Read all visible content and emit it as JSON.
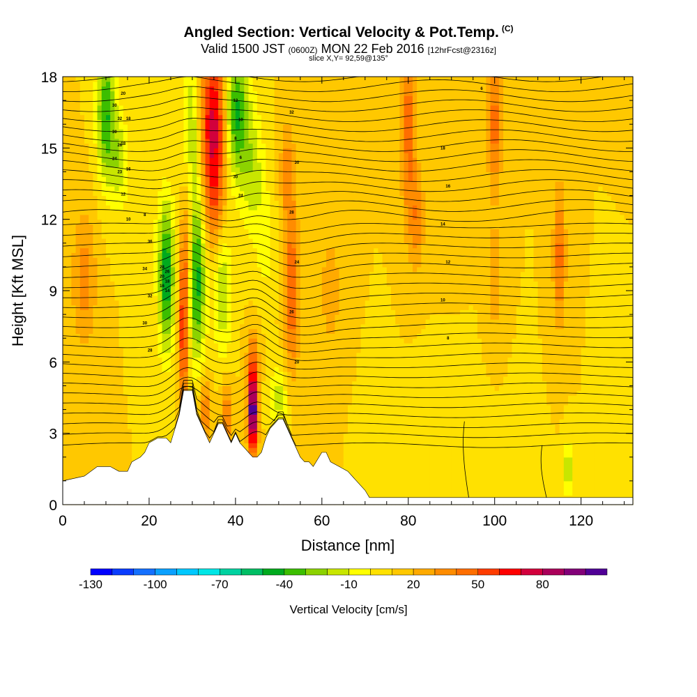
{
  "header": {
    "title": "Angled Section: Vertical Velocity & Pot.Temp.",
    "title_tag": "(C)",
    "subtitle_main": "Valid 1500 JST",
    "subtitle_utc": "(0600Z)",
    "subtitle_date": "MON 22 Feb 2016",
    "subtitle_fcst": "[12hrFcst@2316z]",
    "slice": "slice X,Y= 92,59@135°"
  },
  "chart_data": {
    "type": "heatmap",
    "xlabel": "Distance [nm]",
    "ylabel": "Height [Kft MSL]",
    "xlim": [
      0,
      132
    ],
    "ylim": [
      0,
      18
    ],
    "x_ticks": [
      0,
      20,
      40,
      60,
      80,
      100,
      120
    ],
    "y_ticks": [
      0,
      3,
      6,
      9,
      12,
      15,
      18
    ],
    "colorbar": {
      "title": "Vertical Velocity [cm/s]",
      "tick_labels": [
        -130,
        -100,
        -70,
        -40,
        -10,
        20,
        50,
        80
      ],
      "levels": [
        -130,
        -120,
        -110,
        -100,
        -90,
        -80,
        -70,
        -60,
        -50,
        -40,
        -30,
        -20,
        -10,
        0,
        10,
        20,
        30,
        40,
        50,
        60,
        70,
        80,
        90
      ],
      "colors": [
        "#0000ff",
        "#0a3cff",
        "#1470ff",
        "#0aa0ff",
        "#00c8ff",
        "#00e6e6",
        "#00d2a0",
        "#00be64",
        "#00aa1e",
        "#3cbe00",
        "#8cd200",
        "#c8e600",
        "#ffff00",
        "#ffe100",
        "#ffc800",
        "#ffaa00",
        "#ff8c00",
        "#ff6e00",
        "#ff3c00",
        "#ff0000",
        "#d2003c",
        "#aa005a",
        "#820078",
        "#500096"
      ]
    },
    "terrain": {
      "distance_nm": [
        0,
        5,
        8,
        11,
        13,
        15,
        16,
        18,
        19,
        20,
        22,
        24,
        25,
        26,
        27,
        28,
        30,
        31,
        32,
        33,
        34,
        35,
        36,
        37,
        38,
        39,
        40,
        41,
        42,
        43,
        44,
        45,
        46,
        47,
        48,
        49,
        50,
        51,
        52,
        53,
        54,
        55,
        56,
        57,
        58,
        60,
        61,
        62,
        64,
        66,
        68,
        70,
        71,
        132
      ],
      "height_kft": [
        1.0,
        1.2,
        1.6,
        1.6,
        1.4,
        1.4,
        1.8,
        2.0,
        2.2,
        2.6,
        2.8,
        2.8,
        2.6,
        3.2,
        3.8,
        4.8,
        4.8,
        3.8,
        3.4,
        3.0,
        2.6,
        3.0,
        3.4,
        3.4,
        3.0,
        2.6,
        3.0,
        2.6,
        2.4,
        2.2,
        2.0,
        2.0,
        2.2,
        2.8,
        3.2,
        3.4,
        3.6,
        3.6,
        3.2,
        2.8,
        2.4,
        2.0,
        1.8,
        1.8,
        1.6,
        2.2,
        2.2,
        1.8,
        1.6,
        1.4,
        1.0,
        0.6,
        0.3,
        0.3
      ]
    },
    "background_velocity_cm_s": 10,
    "velocity_features": [
      {
        "x": 10,
        "y": 16.5,
        "sx": 1.5,
        "sy": 2.0,
        "v": -50
      },
      {
        "x": 13,
        "y": 14.5,
        "sx": 1.5,
        "sy": 1.5,
        "v": -25
      },
      {
        "x": 17,
        "y": 12.0,
        "sx": 1.5,
        "sy": 1.5,
        "v": -10
      },
      {
        "x": 24,
        "y": 9.6,
        "sx": 1.3,
        "sy": 2.2,
        "v": -60
      },
      {
        "x": 21,
        "y": 11.5,
        "sx": 1.5,
        "sy": 1.5,
        "v": -5
      },
      {
        "x": 28,
        "y": 7.5,
        "sx": 0.8,
        "sy": 2.5,
        "v": 55
      },
      {
        "x": 29,
        "y": 11.0,
        "sx": 0.9,
        "sy": 2.0,
        "v": 25
      },
      {
        "x": 31,
        "y": 9.5,
        "sx": 1.5,
        "sy": 2.5,
        "v": -55
      },
      {
        "x": 35,
        "y": 16.0,
        "sx": 2.3,
        "sy": 2.5,
        "v": 65
      },
      {
        "x": 35,
        "y": 12.5,
        "sx": 1.5,
        "sy": 1.5,
        "v": 20
      },
      {
        "x": 30,
        "y": 16.0,
        "sx": 1.5,
        "sy": 2.5,
        "v": -30
      },
      {
        "x": 40,
        "y": 16.5,
        "sx": 2.0,
        "sy": 2.0,
        "v": -55
      },
      {
        "x": 44,
        "y": 14.0,
        "sx": 2.0,
        "sy": 2.0,
        "v": -25
      },
      {
        "x": 47,
        "y": 11.0,
        "sx": 1.5,
        "sy": 1.5,
        "v": -15
      },
      {
        "x": 37,
        "y": 9.0,
        "sx": 1.5,
        "sy": 2.0,
        "v": -30
      },
      {
        "x": 44,
        "y": 3.8,
        "sx": 0.8,
        "sy": 1.2,
        "v": 95
      },
      {
        "x": 44,
        "y": 6.0,
        "sx": 1.0,
        "sy": 1.0,
        "v": 30
      },
      {
        "x": 38,
        "y": 3.8,
        "sx": 1.0,
        "sy": 1.0,
        "v": 30
      },
      {
        "x": 33,
        "y": 4.0,
        "sx": 1.0,
        "sy": 1.0,
        "v": 30
      },
      {
        "x": 53,
        "y": 9.0,
        "sx": 1.2,
        "sy": 2.5,
        "v": 40
      },
      {
        "x": 50,
        "y": 4.5,
        "sx": 1.5,
        "sy": 1.0,
        "v": -25
      },
      {
        "x": 52,
        "y": 14.0,
        "sx": 1.2,
        "sy": 1.5,
        "v": 25
      },
      {
        "x": 80,
        "y": 16.0,
        "sx": 1.2,
        "sy": 3.0,
        "v": 35
      },
      {
        "x": 82,
        "y": 12.0,
        "sx": 1.2,
        "sy": 1.5,
        "v": 25
      },
      {
        "x": 100,
        "y": 16.0,
        "sx": 1.2,
        "sy": 2.0,
        "v": 35
      },
      {
        "x": 115,
        "y": 10.5,
        "sx": 1.0,
        "sy": 2.0,
        "v": 35
      },
      {
        "x": 100,
        "y": 9.5,
        "sx": 1.2,
        "sy": 1.5,
        "v": 20
      },
      {
        "x": 73,
        "y": 10.0,
        "sx": 3.0,
        "sy": 2.5,
        "v": 0
      },
      {
        "x": 88,
        "y": 12.5,
        "sx": 3.0,
        "sy": 1.5,
        "v": 5
      },
      {
        "x": 85,
        "y": 4.0,
        "sx": 7.0,
        "sy": 1.5,
        "v": -2
      },
      {
        "x": 105,
        "y": 1.8,
        "sx": 3.0,
        "sy": 1.0,
        "v": -5
      },
      {
        "x": 117,
        "y": 1.5,
        "sx": 0.7,
        "sy": 0.8,
        "v": -30
      },
      {
        "x": 5,
        "y": 9.5,
        "sx": 2.0,
        "sy": 2.0,
        "v": 25
      },
      {
        "x": 62,
        "y": 9.0,
        "sx": 2.0,
        "sy": 2.0,
        "v": 15
      }
    ],
    "theta_contour_labels": [
      "30",
      "32",
      "30",
      "26",
      "24",
      "23",
      "20",
      "18",
      "18",
      "16",
      "12",
      "10",
      "8",
      "36",
      "34",
      "32",
      "30",
      "28",
      "28",
      "26",
      "20",
      "18",
      "16",
      "14",
      "12",
      "10",
      "8",
      "6",
      "30",
      "24",
      "32",
      "30",
      "28",
      "24",
      "26",
      "20",
      "18",
      "16",
      "14",
      "12",
      "10",
      "8",
      "6"
    ]
  }
}
